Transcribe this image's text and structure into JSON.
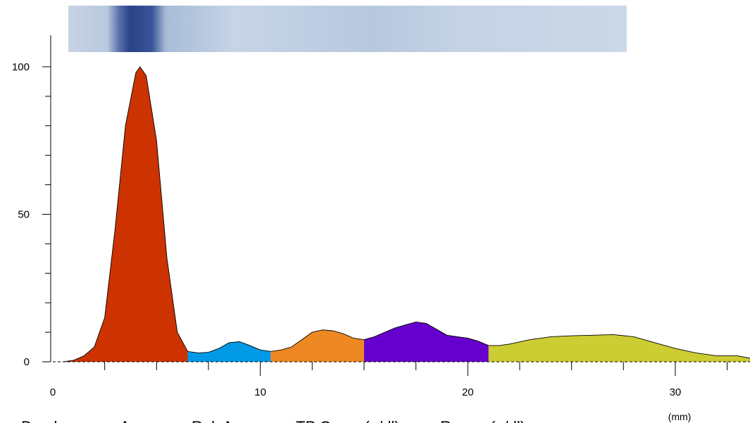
{
  "chart_data": {
    "type": "area",
    "xlabel": "(mm)",
    "xlim": [
      0,
      33.6
    ],
    "ylim": [
      0,
      110
    ],
    "xticks": [
      0,
      10,
      20,
      30
    ],
    "xminorticks": [
      2.5,
      5,
      7.5,
      12.5,
      15,
      17.5,
      22.5,
      25,
      27.5,
      32.5
    ],
    "yticks": [
      0,
      50,
      100
    ],
    "yminorticks": [
      10,
      20,
      30,
      40,
      60,
      70,
      80,
      90
    ],
    "series": [
      {
        "color": "#cc3300",
        "x": [
          0.5,
          1,
          1.5,
          2,
          2.5,
          3,
          3.5,
          4,
          4.2,
          4.5,
          5,
          5.5,
          6,
          6.5
        ],
        "values": [
          0,
          0.5,
          2,
          5,
          15,
          45,
          80,
          98,
          100,
          97,
          75,
          35,
          10,
          3.5
        ]
      },
      {
        "color": "#0099e6",
        "x": [
          6.5,
          7,
          7.5,
          8,
          8.5,
          9,
          9.5,
          10,
          10.5
        ],
        "values": [
          3.5,
          3,
          3.2,
          4.5,
          6.5,
          6.8,
          5.5,
          4,
          3.5
        ]
      },
      {
        "color": "#ee8822",
        "x": [
          10.5,
          11,
          11.5,
          12,
          12.5,
          13,
          13.5,
          14,
          14.5,
          15
        ],
        "values": [
          3.5,
          4,
          5,
          7.5,
          10,
          10.8,
          10.5,
          9.5,
          8,
          7.5
        ]
      },
      {
        "color": "#6600cc",
        "x": [
          15,
          15.5,
          16,
          16.5,
          17,
          17.5,
          18,
          18.5,
          19,
          19.5,
          20,
          20.5,
          21
        ],
        "values": [
          7.5,
          8.5,
          10,
          11.5,
          12.5,
          13.5,
          13,
          11,
          9,
          8.5,
          8,
          7,
          5.5
        ]
      },
      {
        "color": "#cccc33",
        "x": [
          21,
          21.5,
          22,
          23,
          24,
          25,
          26,
          27,
          28,
          29,
          30,
          31,
          32,
          33,
          33.6
        ],
        "values": [
          5.5,
          5.5,
          6,
          7.5,
          8.5,
          8.8,
          9,
          9.2,
          8.5,
          6.5,
          4.5,
          3,
          2,
          2,
          1.2
        ]
      }
    ]
  },
  "table": {
    "headers": [
      "Band",
      "Area",
      "Rel. Area",
      "TP Conc. (g/dl)",
      "Range (g/dl)"
    ]
  }
}
